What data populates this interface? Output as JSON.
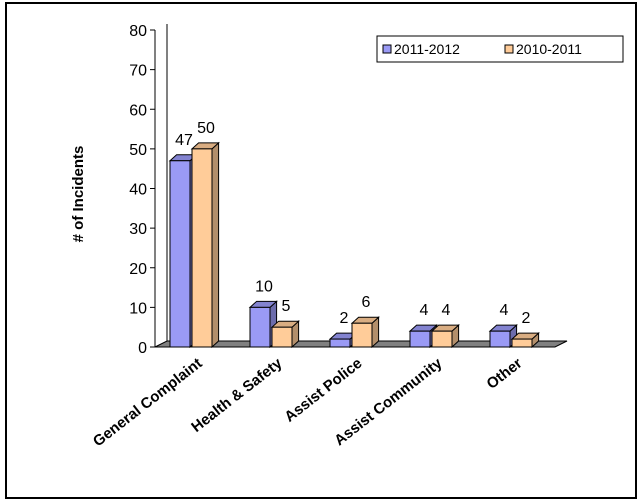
{
  "chart_data": {
    "type": "bar",
    "title": "",
    "ylabel": "# of Incidents",
    "xlabel": "",
    "ylim": [
      0,
      80
    ],
    "yticks": [
      0,
      10,
      20,
      30,
      40,
      50,
      60,
      70,
      80
    ],
    "categories": [
      "General Complaint",
      "Health & Safety",
      "Assist Police",
      "Assist Community",
      "Other"
    ],
    "series": [
      {
        "name": "2011-2012",
        "values": [
          47,
          10,
          2,
          4,
          4
        ],
        "color": "#9a9af5"
      },
      {
        "name": "2010-2011",
        "values": [
          50,
          5,
          6,
          4,
          2
        ],
        "color": "#ffcc99"
      }
    ],
    "legend": "top-right",
    "grid": false,
    "style": "3d"
  }
}
